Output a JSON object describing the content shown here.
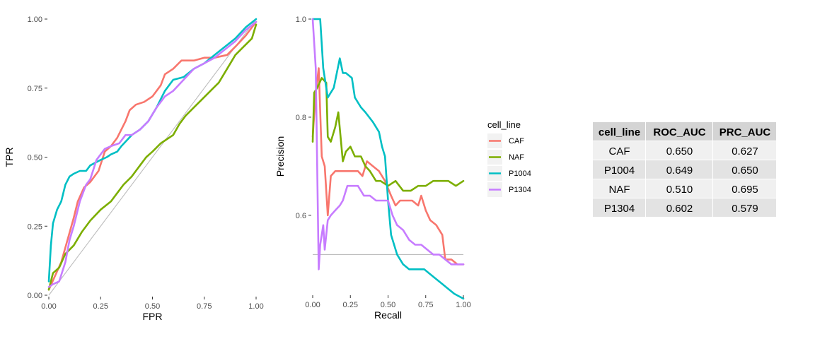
{
  "chart_data": [
    {
      "type": "line",
      "panel": "roc",
      "xlabel": "FPR",
      "ylabel": "TPR",
      "xlim": [
        0,
        1
      ],
      "ylim": [
        0,
        1
      ],
      "xticks": [
        "0.00",
        "0.25",
        "0.50",
        "0.75",
        "1.00"
      ],
      "yticks": [
        "0.00",
        "0.25",
        "0.50",
        "0.75",
        "1.00"
      ],
      "reference_line": [
        [
          0,
          0
        ],
        [
          1,
          1
        ]
      ],
      "series": [
        {
          "name": "CAF",
          "x": [
            0.0,
            0.03,
            0.06,
            0.09,
            0.12,
            0.14,
            0.17,
            0.2,
            0.24,
            0.27,
            0.3,
            0.33,
            0.37,
            0.39,
            0.42,
            0.46,
            0.5,
            0.54,
            0.56,
            0.6,
            0.64,
            0.67,
            0.7,
            0.75,
            0.8,
            0.86,
            0.9,
            0.95,
            1.0
          ],
          "y": [
            0.02,
            0.07,
            0.12,
            0.2,
            0.28,
            0.34,
            0.39,
            0.41,
            0.45,
            0.52,
            0.54,
            0.57,
            0.63,
            0.67,
            0.69,
            0.7,
            0.72,
            0.76,
            0.8,
            0.82,
            0.85,
            0.85,
            0.85,
            0.86,
            0.86,
            0.87,
            0.9,
            0.94,
            0.99
          ]
        },
        {
          "name": "NAF",
          "x": [
            0.0,
            0.02,
            0.05,
            0.08,
            0.12,
            0.16,
            0.2,
            0.25,
            0.3,
            0.33,
            0.36,
            0.4,
            0.44,
            0.47,
            0.5,
            0.54,
            0.56,
            0.6,
            0.63,
            0.66,
            0.7,
            0.74,
            0.78,
            0.82,
            0.86,
            0.9,
            0.94,
            0.98,
            1.0
          ],
          "y": [
            0.02,
            0.08,
            0.1,
            0.15,
            0.18,
            0.23,
            0.27,
            0.31,
            0.34,
            0.37,
            0.4,
            0.43,
            0.47,
            0.5,
            0.52,
            0.55,
            0.56,
            0.58,
            0.62,
            0.65,
            0.68,
            0.71,
            0.74,
            0.77,
            0.82,
            0.87,
            0.9,
            0.93,
            0.98
          ]
        },
        {
          "name": "P1004",
          "x": [
            0.0,
            0.01,
            0.02,
            0.04,
            0.06,
            0.08,
            0.1,
            0.12,
            0.15,
            0.18,
            0.2,
            0.25,
            0.28,
            0.3,
            0.33,
            0.35,
            0.4,
            0.44,
            0.48,
            0.52,
            0.56,
            0.6,
            0.65,
            0.7,
            0.75,
            0.8,
            0.85,
            0.9,
            0.95,
            1.0
          ],
          "y": [
            0.05,
            0.18,
            0.26,
            0.31,
            0.34,
            0.4,
            0.43,
            0.44,
            0.45,
            0.45,
            0.47,
            0.49,
            0.5,
            0.51,
            0.52,
            0.54,
            0.58,
            0.6,
            0.63,
            0.68,
            0.74,
            0.78,
            0.79,
            0.82,
            0.84,
            0.87,
            0.9,
            0.93,
            0.97,
            1.0
          ]
        },
        {
          "name": "P1304",
          "x": [
            0.0,
            0.02,
            0.05,
            0.08,
            0.1,
            0.12,
            0.15,
            0.18,
            0.2,
            0.23,
            0.27,
            0.3,
            0.34,
            0.37,
            0.4,
            0.44,
            0.48,
            0.52,
            0.56,
            0.6,
            0.65,
            0.7,
            0.75,
            0.8,
            0.85,
            0.9,
            0.95,
            1.0
          ],
          "y": [
            0.03,
            0.04,
            0.05,
            0.12,
            0.2,
            0.25,
            0.34,
            0.4,
            0.42,
            0.49,
            0.53,
            0.54,
            0.55,
            0.58,
            0.58,
            0.6,
            0.63,
            0.68,
            0.72,
            0.74,
            0.78,
            0.82,
            0.84,
            0.86,
            0.89,
            0.92,
            0.96,
            0.99
          ]
        }
      ]
    },
    {
      "type": "line",
      "panel": "precision-recall",
      "xlabel": "Recall",
      "ylabel": "Precision",
      "xlim": [
        0,
        1
      ],
      "ylim": [
        0.44,
        1.0
      ],
      "xticks": [
        "0.00",
        "0.25",
        "0.50",
        "0.75",
        "1.00"
      ],
      "yticks": [
        "0.6",
        "0.8",
        "1.0"
      ],
      "baseline": 0.52,
      "series": [
        {
          "name": "CAF",
          "x": [
            0.0,
            0.02,
            0.04,
            0.06,
            0.08,
            0.1,
            0.12,
            0.15,
            0.18,
            0.22,
            0.26,
            0.3,
            0.33,
            0.36,
            0.4,
            0.44,
            0.48,
            0.52,
            0.55,
            0.58,
            0.62,
            0.66,
            0.7,
            0.72,
            0.75,
            0.78,
            0.82,
            0.86,
            0.88,
            0.92,
            0.96,
            1.0
          ],
          "y": [
            0.76,
            0.85,
            0.9,
            0.72,
            0.7,
            0.6,
            0.68,
            0.69,
            0.69,
            0.69,
            0.69,
            0.69,
            0.68,
            0.71,
            0.7,
            0.69,
            0.67,
            0.64,
            0.62,
            0.63,
            0.63,
            0.63,
            0.62,
            0.64,
            0.61,
            0.59,
            0.58,
            0.56,
            0.51,
            0.51,
            0.5,
            0.5
          ]
        },
        {
          "name": "NAF",
          "x": [
            0.0,
            0.01,
            0.03,
            0.06,
            0.09,
            0.1,
            0.12,
            0.15,
            0.17,
            0.2,
            0.22,
            0.25,
            0.28,
            0.32,
            0.35,
            0.38,
            0.42,
            0.45,
            0.5,
            0.55,
            0.6,
            0.65,
            0.7,
            0.75,
            0.8,
            0.85,
            0.9,
            0.95,
            1.0
          ],
          "y": [
            0.75,
            0.85,
            0.86,
            0.88,
            0.87,
            0.76,
            0.75,
            0.78,
            0.81,
            0.71,
            0.73,
            0.74,
            0.72,
            0.72,
            0.7,
            0.69,
            0.67,
            0.67,
            0.66,
            0.67,
            0.65,
            0.65,
            0.66,
            0.66,
            0.67,
            0.67,
            0.67,
            0.66,
            0.67
          ]
        },
        {
          "name": "P1004",
          "x": [
            0.0,
            0.02,
            0.05,
            0.07,
            0.1,
            0.14,
            0.18,
            0.2,
            0.22,
            0.26,
            0.28,
            0.32,
            0.35,
            0.4,
            0.44,
            0.46,
            0.48,
            0.5,
            0.52,
            0.56,
            0.6,
            0.64,
            0.7,
            0.74,
            0.78,
            0.82,
            0.86,
            0.9,
            0.94,
            1.0
          ],
          "y": [
            1.0,
            1.0,
            1.0,
            0.9,
            0.84,
            0.86,
            0.92,
            0.89,
            0.89,
            0.88,
            0.84,
            0.82,
            0.81,
            0.79,
            0.77,
            0.74,
            0.72,
            0.63,
            0.56,
            0.52,
            0.5,
            0.49,
            0.49,
            0.49,
            0.48,
            0.47,
            0.46,
            0.45,
            0.44,
            0.43
          ]
        },
        {
          "name": "P1304",
          "x": [
            0.0,
            0.02,
            0.04,
            0.05,
            0.07,
            0.08,
            0.1,
            0.12,
            0.15,
            0.18,
            0.2,
            0.23,
            0.26,
            0.3,
            0.34,
            0.38,
            0.42,
            0.46,
            0.5,
            0.53,
            0.56,
            0.6,
            0.64,
            0.68,
            0.72,
            0.76,
            0.8,
            0.84,
            0.88,
            0.92,
            0.96,
            1.0
          ],
          "y": [
            1.0,
            0.9,
            0.49,
            0.54,
            0.58,
            0.53,
            0.59,
            0.6,
            0.61,
            0.62,
            0.63,
            0.66,
            0.66,
            0.66,
            0.64,
            0.64,
            0.63,
            0.63,
            0.63,
            0.6,
            0.58,
            0.57,
            0.55,
            0.54,
            0.54,
            0.53,
            0.52,
            0.52,
            0.51,
            0.5,
            0.5,
            0.5
          ]
        }
      ]
    },
    {
      "type": "table",
      "columns": [
        "cell_line",
        "ROC_AUC",
        "PRC_AUC"
      ],
      "rows": [
        [
          "CAF",
          "0.650",
          "0.627"
        ],
        [
          "P1004",
          "0.649",
          "0.650"
        ],
        [
          "NAF",
          "0.510",
          "0.695"
        ],
        [
          "P1304",
          "0.602",
          "0.579"
        ]
      ]
    }
  ],
  "legend": {
    "title": "cell_line",
    "items": [
      {
        "label": "CAF",
        "color": "#F8766D"
      },
      {
        "label": "NAF",
        "color": "#7CAE00"
      },
      {
        "label": "P1004",
        "color": "#00BFC4"
      },
      {
        "label": "P1304",
        "color": "#C77CFF"
      }
    ]
  }
}
